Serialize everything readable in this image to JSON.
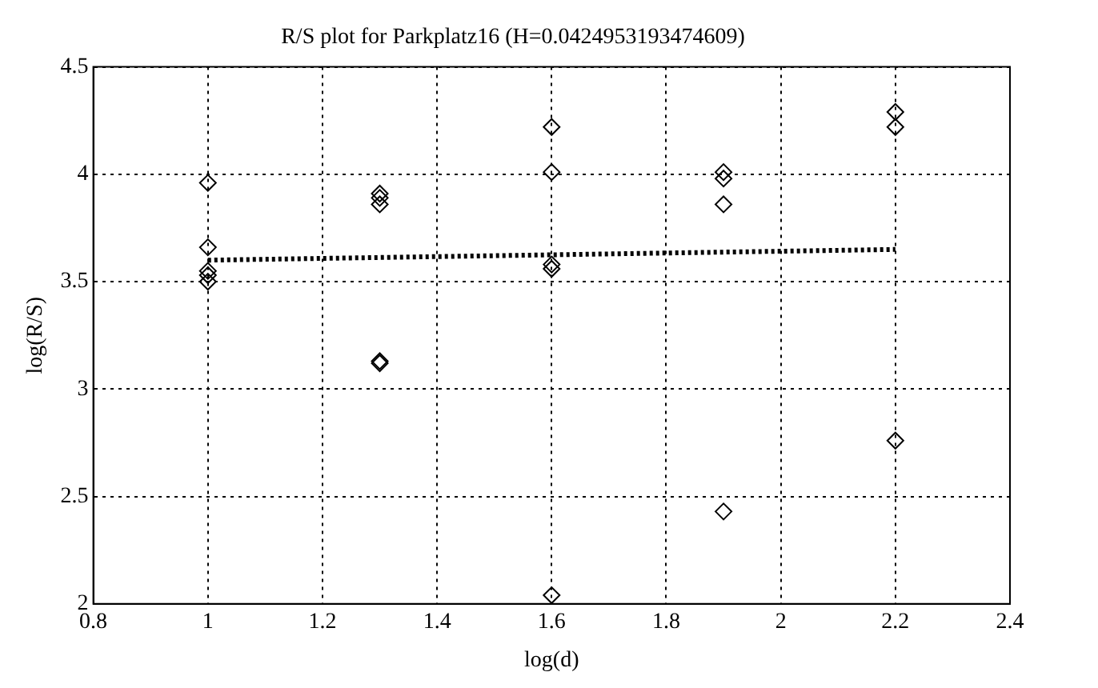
{
  "chart_data": {
    "type": "scatter",
    "title": "R/S plot for Parkplatz16 (H=0.0424953193474609)",
    "xlabel": "log(d)",
    "ylabel": "log(R/S)",
    "xlim": [
      0.8,
      2.4
    ],
    "xticks": [
      0.8,
      1,
      1.2,
      1.4,
      1.6,
      1.8,
      2,
      2.2,
      2.4
    ],
    "ylim": [
      2,
      4.5
    ],
    "yticks": [
      2,
      2.5,
      3,
      3.5,
      4,
      4.5
    ],
    "grid": true,
    "legend": false,
    "series": [
      {
        "color": "#000000",
        "marker": "diamond",
        "x": [
          1,
          1,
          1,
          1,
          1,
          1.3,
          1.3,
          1.3,
          1.3,
          1.3,
          1.6,
          1.6,
          1.6,
          1.6,
          1.6,
          1.9,
          1.9,
          1.9,
          1.9,
          2.2,
          2.2,
          2.2
        ],
        "values": [
          3.96,
          3.66,
          3.55,
          3.53,
          3.5,
          3.91,
          3.89,
          3.86,
          3.13,
          3.12,
          4.22,
          4.01,
          3.58,
          3.56,
          2.04,
          4.01,
          3.98,
          3.86,
          2.43,
          4.29,
          4.22,
          2.76
        ]
      },
      {
        "type": "line",
        "color": "#000000",
        "marker": "none",
        "line_style": "dotted",
        "x": [
          1,
          2.2
        ],
        "values": [
          3.6,
          3.65
        ]
      }
    ]
  }
}
